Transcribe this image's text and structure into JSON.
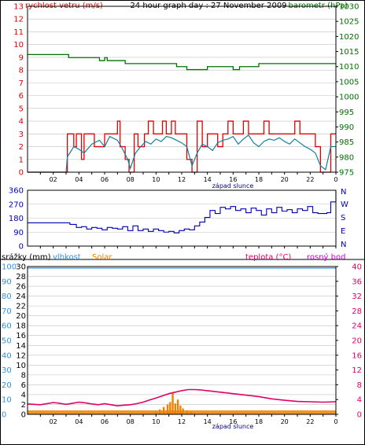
{
  "colors": {
    "wind": "#e00000",
    "gust": "#e00000",
    "wind_avg": "#1080a0",
    "pressure": "#007000",
    "direction": "#0000b0",
    "humidity": "#3090e0",
    "solar": "#f08000",
    "temperature": "#e0006a",
    "dewpoint": "#d000d0",
    "rain": "#000000",
    "axis": "#000000",
    "grid": "#c0c0c0"
  },
  "chart_data": [
    {
      "type": "line",
      "title": "24 hour graph day : 27 November 2009",
      "ylabel_left": "rychlost vetru (m/s)",
      "ylabel_right": "barometr (hPa)",
      "x_tick_labels": [
        "02",
        "04",
        "06",
        "08",
        "10",
        "12",
        "14",
        "16",
        "18",
        "20",
        "22",
        "0"
      ],
      "sunset_label": "západ slunce",
      "xlim": [
        0,
        24
      ],
      "ylim_left": [
        0,
        13
      ],
      "ylim_right": [
        975,
        1030
      ],
      "yticks_left": [
        "0",
        "1",
        "2",
        "3",
        "4",
        "5",
        "6",
        "7",
        "8",
        "9",
        "10",
        "11",
        "12",
        "13"
      ],
      "yticks_right": [
        "975",
        "980",
        "985",
        "990",
        "995",
        "1000",
        "1005",
        "1010",
        "1015",
        "1020",
        "1025",
        "1030"
      ],
      "grid": true,
      "series": [
        {
          "key": "gust",
          "x": [
            0,
            3,
            3.1,
            3.6,
            3.8,
            4.2,
            4.4,
            5.0,
            5.2,
            6.0,
            6.4,
            7.0,
            7.2,
            7.6,
            7.9,
            8.3,
            8.6,
            9.1,
            9.4,
            9.8,
            10.1,
            10.5,
            10.8,
            11.2,
            11.5,
            12.0,
            12.4,
            12.8,
            13.2,
            13.6,
            14.0,
            14.4,
            14.8,
            15.2,
            15.6,
            16.0,
            16.4,
            16.8,
            17.2,
            17.6,
            18.0,
            18.4,
            18.8,
            19.2,
            19.6,
            20.0,
            20.4,
            20.8,
            21.2,
            21.6,
            22.0,
            22.4,
            22.8,
            23.2,
            23.6,
            24
          ],
          "values": [
            0,
            0,
            3,
            2,
            3,
            1,
            3,
            3,
            2,
            3,
            3,
            4,
            2,
            1,
            0,
            3,
            2,
            3,
            4,
            3,
            3,
            4,
            3,
            4,
            3,
            3,
            1,
            0,
            4,
            2,
            3,
            3,
            2,
            3,
            4,
            3,
            3,
            4,
            3,
            3,
            3,
            4,
            3,
            3,
            3,
            3,
            3,
            4,
            3,
            3,
            3,
            2,
            0,
            0,
            3,
            3
          ]
        },
        {
          "key": "wind_avg",
          "x": [
            0,
            3,
            3.1,
            3.6,
            4.0,
            4.4,
            5.0,
            5.6,
            6.0,
            6.4,
            7.0,
            7.3,
            7.8,
            8.0,
            8.4,
            8.8,
            9.2,
            9.6,
            10.0,
            10.4,
            10.8,
            11.2,
            11.6,
            12.0,
            12.4,
            12.8,
            13.2,
            13.6,
            14.0,
            14.4,
            14.8,
            15.2,
            15.6,
            16.0,
            16.4,
            16.8,
            17.2,
            17.6,
            18.0,
            18.4,
            18.8,
            19.2,
            19.6,
            20.0,
            20.4,
            20.8,
            21.2,
            21.6,
            22.0,
            22.4,
            22.8,
            23.2,
            23.6,
            24
          ],
          "values": [
            0,
            0,
            1.2,
            2.0,
            1.8,
            1.5,
            2.2,
            2.5,
            2.0,
            2.8,
            2.5,
            2.0,
            1.0,
            0.3,
            1.5,
            2.0,
            2.4,
            2.2,
            2.6,
            2.4,
            2.8,
            2.7,
            2.5,
            2.3,
            2.0,
            0.5,
            1.5,
            2.2,
            2.0,
            1.7,
            2.3,
            2.5,
            2.6,
            2.8,
            2.2,
            2.6,
            2.9,
            2.3,
            2.0,
            2.4,
            2.6,
            2.5,
            2.7,
            2.4,
            2.2,
            2.6,
            2.3,
            2.0,
            1.8,
            1.5,
            0.5,
            0.2,
            2.0,
            2.0
          ]
        },
        {
          "key": "pressure",
          "axis": "right",
          "x": [
            0,
            3,
            3.2,
            5.5,
            5.6,
            5.8,
            6.0,
            6.2,
            6.4,
            7.0,
            7.6,
            8.0,
            9.0,
            9.5,
            10.5,
            11.0,
            11.6,
            12.4,
            13.0,
            13.8,
            14.0,
            15.0,
            16.0,
            16.5,
            17.0,
            18.0,
            20.0,
            22.0,
            24
          ],
          "values": [
            1014,
            1014,
            1013,
            1013,
            1012,
            1012,
            1013,
            1012,
            1012,
            1012,
            1011,
            1011,
            1011,
            1011,
            1011,
            1011,
            1010,
            1009,
            1009,
            1009,
            1010,
            1010,
            1009,
            1010,
            1010,
            1011,
            1011,
            1011,
            1011
          ]
        }
      ]
    },
    {
      "type": "line",
      "ylabel_right": "N W S E N",
      "compass_labels": [
        "N",
        "W",
        "S",
        "E",
        "N"
      ],
      "ylim": [
        0,
        360
      ],
      "yticks": [
        "0",
        "90",
        "180",
        "270",
        "360"
      ],
      "grid": true,
      "series": [
        {
          "key": "direction",
          "x": [
            0,
            3,
            3.3,
            3.8,
            4.2,
            4.6,
            5.0,
            5.4,
            5.8,
            6.2,
            6.6,
            7.0,
            7.4,
            7.8,
            8.2,
            8.6,
            9.0,
            9.4,
            9.8,
            10.2,
            10.6,
            11.0,
            11.4,
            11.8,
            12.2,
            12.6,
            13.0,
            13.4,
            13.8,
            14.2,
            14.6,
            15.0,
            15.4,
            15.8,
            16.2,
            16.6,
            17.0,
            17.4,
            17.8,
            18.2,
            18.6,
            19.0,
            19.4,
            19.8,
            20.2,
            20.6,
            21.0,
            21.4,
            21.8,
            22.2,
            22.6,
            23.0,
            23.3,
            23.6,
            24
          ],
          "values": [
            150,
            150,
            140,
            120,
            125,
            110,
            120,
            115,
            105,
            120,
            115,
            110,
            125,
            100,
            130,
            100,
            110,
            95,
            110,
            100,
            90,
            95,
            85,
            100,
            110,
            105,
            130,
            155,
            185,
            230,
            210,
            250,
            240,
            255,
            230,
            240,
            215,
            245,
            230,
            200,
            240,
            215,
            250,
            225,
            235,
            215,
            240,
            230,
            255,
            215,
            210,
            210,
            215,
            285,
            360
          ]
        }
      ]
    },
    {
      "type": "line",
      "ylabel_left_1": "srážky (mm)",
      "ylabel_left_2": "vlhkost",
      "ylabel_left_3": "Solar",
      "ylabel_right_1": "teplota (°C)",
      "ylabel_right_2": "rosný bod",
      "x_tick_labels": [
        "02",
        "04",
        "06",
        "08",
        "10",
        "12",
        "14",
        "16",
        "18",
        "20",
        "22",
        "0"
      ],
      "sunset_label": "západ slunce",
      "ylim_rain": [
        0,
        30
      ],
      "yticks_rain": [
        "0",
        "2",
        "4",
        "6",
        "8",
        "10",
        "12",
        "14",
        "16",
        "18",
        "20",
        "22",
        "24",
        "26",
        "28",
        "30"
      ],
      "yticks_humidity": [
        "0",
        "10",
        "20",
        "30",
        "40",
        "50",
        "60",
        "70",
        "80",
        "90",
        "100"
      ],
      "ylim_temp": [
        0,
        40
      ],
      "yticks_temp": [
        "0",
        "4",
        "8",
        "12",
        "16",
        "20",
        "24",
        "28",
        "32",
        "36",
        "40"
      ],
      "grid": true,
      "series": [
        {
          "key": "humidity",
          "x": [
            0,
            24
          ],
          "values": [
            99,
            99
          ]
        },
        {
          "key": "temperature",
          "axis": "right",
          "x": [
            0,
            1,
            1.5,
            2.0,
            2.5,
            3.0,
            3.5,
            4.0,
            4.5,
            5.0,
            5.5,
            6.0,
            6.5,
            7.0,
            7.5,
            8.0,
            8.5,
            9.0,
            9.5,
            10.0,
            10.5,
            11.0,
            11.5,
            12.0,
            12.5,
            13.0,
            13.5,
            14.0,
            15.0,
            16.0,
            17.0,
            18.0,
            19.0,
            20.0,
            21.0,
            22.0,
            23.0,
            24
          ],
          "values": [
            2.8,
            2.6,
            2.9,
            3.2,
            3.0,
            2.7,
            3.0,
            3.3,
            3.1,
            2.8,
            2.6,
            2.9,
            2.6,
            2.3,
            2.5,
            2.6,
            2.9,
            3.3,
            3.9,
            4.4,
            5.0,
            5.6,
            6.0,
            6.4,
            6.7,
            6.7,
            6.6,
            6.4,
            6.0,
            5.6,
            5.2,
            4.8,
            4.2,
            3.8,
            3.5,
            3.4,
            3.3,
            3.4
          ]
        },
        {
          "key": "solar",
          "x": [
            10.0,
            10.3,
            10.6,
            10.9,
            11.1,
            11.3,
            11.5,
            11.7,
            11.9,
            12.1,
            12.4,
            12.7,
            13.0
          ],
          "values": [
            0.5,
            1.0,
            1.5,
            2.0,
            2.5,
            4.5,
            2.2,
            3.0,
            1.8,
            1.2,
            0.8,
            0.5,
            0.2
          ]
        }
      ]
    }
  ]
}
